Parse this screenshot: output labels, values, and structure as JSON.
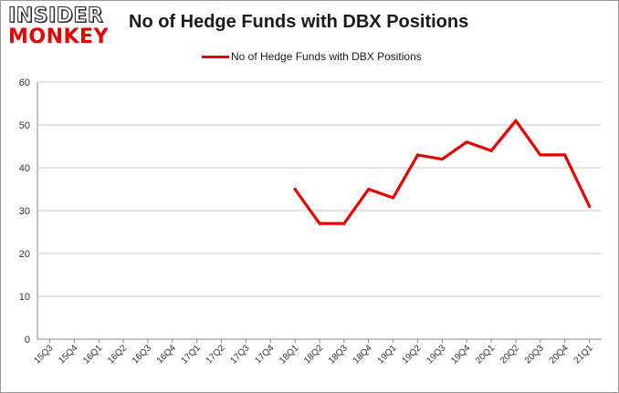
{
  "brand": {
    "line1": "INSIDER",
    "line2": "MONKEY",
    "colors": {
      "line1": "#ffffff",
      "line2": "#e60000"
    }
  },
  "chart_data": {
    "type": "line",
    "title": "No of Hedge Funds with DBX Positions",
    "xlabel": "",
    "ylabel": "",
    "categories": [
      "15Q3",
      "15Q4",
      "16Q1",
      "16Q2",
      "16Q3",
      "16Q4",
      "17Q1",
      "17Q2",
      "17Q3",
      "17Q4",
      "18Q1",
      "18Q2",
      "18Q3",
      "18Q4",
      "19Q1",
      "19Q2",
      "19Q3",
      "19Q4",
      "20Q1",
      "20Q2",
      "20Q3",
      "20Q4",
      "21Q1"
    ],
    "series": [
      {
        "name": "No of Hedge Funds with DBX Positions",
        "color": "#e60000",
        "values": [
          null,
          null,
          null,
          null,
          null,
          null,
          null,
          null,
          null,
          null,
          35,
          27,
          27,
          35,
          33,
          43,
          42,
          46,
          44,
          51,
          43,
          43,
          31
        ]
      }
    ],
    "ylim": [
      0,
      60
    ],
    "yticks": [
      0,
      10,
      20,
      30,
      40,
      50,
      60
    ],
    "grid": true,
    "legend_position": "top-center"
  }
}
